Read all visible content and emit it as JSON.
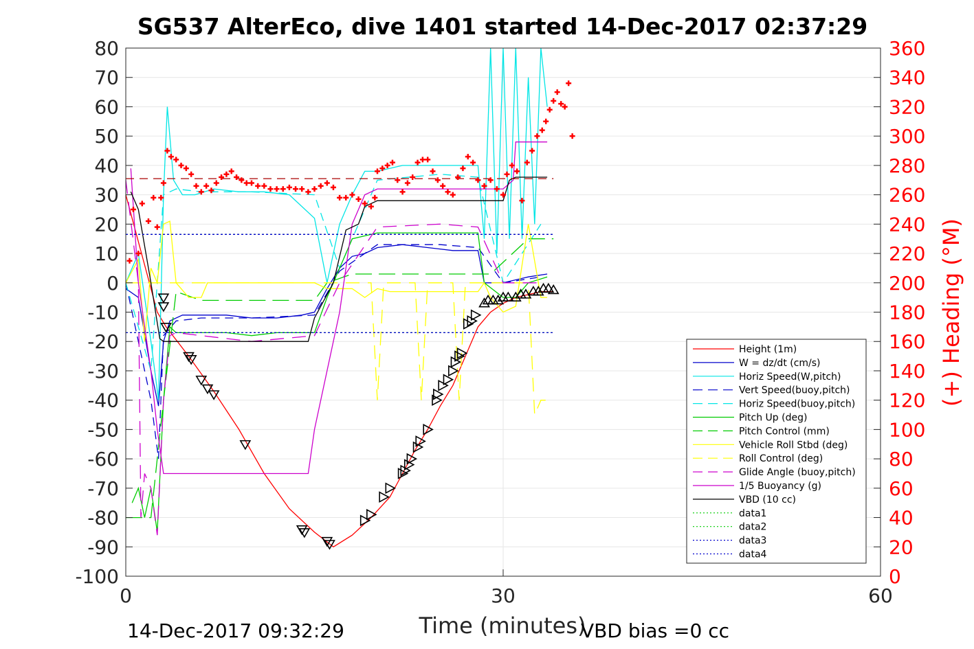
{
  "chart_data": {
    "type": "line",
    "title": "SG537 AlterEco, dive 1401 started 14-Dec-2017 02:37:29",
    "xlabel": "Time (minutes)",
    "ylabel_right": "(+) Heading (°M)",
    "footer_left": "14-Dec-2017 09:32:29",
    "footer_right": "VBD bias =0 cc",
    "xlim": [
      0,
      60
    ],
    "ylim": [
      -100,
      80
    ],
    "ylim_right": [
      0,
      360
    ],
    "xticks": [
      "0",
      "30",
      "60"
    ],
    "yticks": [
      "80",
      "70",
      "60",
      "50",
      "40",
      "30",
      "20",
      "10",
      "0",
      "-10",
      "-20",
      "-30",
      "-40",
      "-50",
      "-60",
      "-70",
      "-80",
      "-90",
      "-100"
    ],
    "yticks_right": [
      "360",
      "340",
      "320",
      "300",
      "280",
      "260",
      "240",
      "220",
      "200",
      "180",
      "160",
      "140",
      "120",
      "100",
      "80",
      "60",
      "40",
      "20",
      "0"
    ],
    "legend_position": "bottom-right",
    "grid": true,
    "legend": [
      {
        "label": "Height (1m)",
        "color": "#ff0000",
        "style": "solid"
      },
      {
        "label": "W = dz/dt (cm/s)",
        "color": "#0000cc",
        "style": "solid"
      },
      {
        "label": "Horiz Speed(W,pitch)",
        "color": "#00e5e5",
        "style": "solid"
      },
      {
        "label": "Vert Speed(buoy,pitch)",
        "color": "#0000cc",
        "style": "dashed"
      },
      {
        "label": "Horiz Speed(buoy,pitch)",
        "color": "#00e5e5",
        "style": "dashed"
      },
      {
        "label": "Pitch Up (deg)",
        "color": "#00cc00",
        "style": "solid"
      },
      {
        "label": "Pitch Control (mm)",
        "color": "#00cc00",
        "style": "dashed"
      },
      {
        "label": "Vehicle Roll Stbd (deg)",
        "color": "#ffff00",
        "style": "solid"
      },
      {
        "label": "Roll Control (deg)",
        "color": "#ffff00",
        "style": "dashed"
      },
      {
        "label": "Glide Angle (buoy,pitch)",
        "color": "#cc00cc",
        "style": "dashed"
      },
      {
        "label": "1/5 Buoyancy (g)",
        "color": "#cc00cc",
        "style": "solid"
      },
      {
        "label": "VBD (10 cc)",
        "color": "#000000",
        "style": "solid"
      },
      {
        "label": "data1",
        "color": "#00cc00",
        "style": "dotted"
      },
      {
        "label": "data2",
        "color": "#00cc00",
        "style": "dotted"
      },
      {
        "label": "data3",
        "color": "#0000cc",
        "style": "dotted"
      },
      {
        "label": "data4",
        "color": "#0000cc",
        "style": "dotted"
      }
    ],
    "series": [
      {
        "name": "Height (1m)",
        "color": "#ff0000",
        "dash": "",
        "x": [
          0,
          2.5,
          3.2,
          5,
          7,
          9,
          11,
          13,
          15,
          16.5,
          18,
          19.5,
          21,
          22,
          23,
          24,
          25,
          26,
          27,
          28,
          29,
          30,
          31,
          32,
          33,
          34
        ],
        "y": [
          30,
          -10,
          -15,
          -25,
          -37,
          -50,
          -65,
          -77,
          -85,
          -90,
          -86,
          -80,
          -73,
          -65,
          -57,
          -50,
          -42,
          -35,
          -25,
          -15,
          -10,
          -7,
          -5,
          -4,
          -3,
          -3
        ]
      },
      {
        "name": "W = dz/dt (cm/s)",
        "color": "#0000cc",
        "dash": "",
        "x": [
          0,
          1,
          2,
          2.6,
          3,
          3.5,
          4.5,
          6,
          8,
          10,
          12,
          14,
          15,
          16,
          17,
          18,
          19,
          20,
          22,
          24,
          26,
          28,
          28.5,
          30,
          32,
          33.5
        ],
        "y": [
          -2,
          -5,
          -30,
          -42,
          -20,
          -13,
          -11,
          -11,
          -11,
          -12,
          -12,
          -11,
          -10,
          -2,
          5,
          9,
          10,
          12,
          13,
          12,
          11,
          11,
          0,
          0,
          2,
          3
        ]
      },
      {
        "name": "Horiz Speed(W,pitch)",
        "color": "#00e5e5",
        "dash": "",
        "x": [
          0,
          1,
          2,
          2.6,
          3,
          3.3,
          3.8,
          4.5,
          5.5,
          7,
          9,
          11,
          13,
          15,
          16,
          17,
          18,
          19,
          20,
          22,
          24,
          26,
          28,
          28.5,
          29,
          29.5,
          30,
          30.5,
          31,
          31.5,
          32,
          32.5,
          33,
          33.5
        ],
        "y": [
          0,
          10,
          -20,
          -40,
          30,
          60,
          35,
          30,
          30,
          32,
          31,
          31,
          30,
          22,
          0,
          20,
          30,
          38,
          38,
          40,
          40,
          40,
          40,
          15,
          80,
          10,
          80,
          15,
          80,
          15,
          70,
          20,
          80,
          60
        ]
      },
      {
        "name": "Vert Speed(buoy,pitch)",
        "color": "#0000cc",
        "dash": "12 8",
        "x": [
          0,
          2,
          2.6,
          3,
          4,
          6,
          10,
          15,
          17,
          20,
          25,
          28,
          30,
          33
        ],
        "y": [
          0,
          -40,
          -60,
          -18,
          -13,
          -12,
          -12,
          -11,
          4,
          13,
          13,
          12,
          0,
          2
        ]
      },
      {
        "name": "Horiz Speed(buoy,pitch)",
        "color": "#00e5e5",
        "dash": "12 8",
        "x": [
          0,
          2,
          3,
          4,
          6,
          10,
          15,
          17,
          20,
          25,
          28,
          30,
          33
        ],
        "y": [
          0,
          -30,
          30,
          32,
          31,
          31,
          30,
          5,
          35,
          37,
          36,
          0,
          20
        ]
      },
      {
        "name": "Pitch Up (deg)",
        "color": "#00cc00",
        "dash": "",
        "x": [
          0.5,
          1,
          1.5,
          2,
          2.5,
          3,
          3.5,
          4,
          6,
          8,
          10,
          12,
          14,
          15,
          16,
          17,
          18,
          20,
          22,
          24,
          26,
          28,
          28.5,
          30,
          31,
          32,
          33.5
        ],
        "y": [
          -75,
          -70,
          -80,
          -70,
          -85,
          -40,
          -15,
          -17,
          -17,
          -17,
          -18,
          -17,
          -17,
          -17,
          -5,
          5,
          15,
          17,
          17,
          17,
          17,
          17,
          0,
          -5,
          -5,
          0,
          2
        ]
      },
      {
        "name": "Pitch Control (mm)",
        "color": "#00cc00",
        "dash": "24 10",
        "x": [
          0,
          2,
          3,
          4,
          6,
          10,
          15,
          16,
          18,
          20,
          25,
          28,
          29,
          32,
          34
        ],
        "y": [
          -80,
          -80,
          -40,
          -3,
          -6,
          -6,
          -6,
          0,
          3,
          3,
          3,
          3,
          3,
          15,
          15
        ]
      },
      {
        "name": "Vehicle Roll Stbd (deg)",
        "color": "#ffff00",
        "dash": "",
        "x": [
          0,
          1,
          1.5,
          2,
          2.5,
          3,
          3.5,
          4,
          5,
          6,
          6.5,
          7,
          9,
          11,
          13,
          14,
          15,
          16,
          17,
          18,
          19,
          20,
          21,
          22,
          23,
          24,
          25,
          26,
          27,
          28,
          28.5,
          29,
          30,
          31,
          32,
          33,
          33.5
        ],
        "y": [
          0,
          8,
          -20,
          5,
          0,
          20,
          21,
          0,
          -5,
          -5,
          0,
          0,
          0,
          0,
          0,
          0,
          0,
          -2,
          -2,
          -2,
          -5,
          -2,
          -3,
          -3,
          -3,
          -3,
          -3,
          -3,
          -3,
          -3,
          0,
          -5,
          -10,
          -8,
          20,
          -5,
          -5
        ]
      },
      {
        "name": "Roll Control (deg)",
        "color": "#ffff00",
        "dash": "20 12",
        "x": [
          0,
          5,
          10,
          15,
          18,
          19.5,
          20,
          20.5,
          22,
          23,
          23.5,
          24,
          25,
          26,
          26.5,
          27,
          28,
          30,
          32,
          32.5,
          33,
          33.5
        ],
        "y": [
          0,
          0,
          0,
          0,
          0,
          0,
          -40,
          0,
          0,
          0,
          -40,
          0,
          0,
          0,
          -40,
          0,
          0,
          0,
          0,
          -45,
          -40,
          -40
        ]
      },
      {
        "name": "Glide Angle (buoy,pitch)",
        "color": "#cc00cc",
        "dash": "20 12",
        "x": [
          0,
          1,
          1.2,
          1.5,
          2,
          2.5,
          3,
          3.5,
          4,
          6,
          10,
          15,
          17,
          20,
          25,
          28,
          30,
          33
        ],
        "y": [
          35,
          0,
          -80,
          -65,
          -70,
          -86,
          -40,
          -18,
          -17,
          -18,
          -20,
          -18,
          0,
          19,
          20,
          19,
          0,
          0
        ]
      },
      {
        "name": "1/5 Buoyancy (g)",
        "color": "#cc00cc",
        "dash": "",
        "x": [
          0.4,
          1,
          2,
          2.5,
          3,
          5,
          10,
          14.5,
          15,
          17,
          18,
          19,
          20,
          25,
          28,
          28.5,
          30,
          30.8,
          31,
          32,
          33.5
        ],
        "y": [
          39,
          0,
          -30,
          -50,
          -65,
          -65,
          -65,
          -65,
          -50,
          -10,
          20,
          30,
          32,
          32,
          32,
          32,
          32,
          35,
          48,
          48,
          48
        ]
      },
      {
        "name": "VBD (10 cc)",
        "color": "#000000",
        "dash": "",
        "x": [
          0.4,
          1,
          2,
          2.7,
          3,
          5,
          10,
          14.5,
          15,
          16.5,
          17.5,
          18.5,
          19,
          20,
          22,
          25,
          28.5,
          30,
          30.5,
          31,
          33.5
        ],
        "y": [
          31,
          25,
          0,
          -19,
          -20,
          -20,
          -20,
          -20,
          -12,
          0,
          18,
          20,
          26,
          28,
          28,
          28,
          28,
          28,
          35,
          36,
          36
        ]
      },
      {
        "name": "data1",
        "color": "#00cc00",
        "dash": "3 3",
        "x": [
          0,
          34
        ],
        "y": [
          16.5,
          16.5
        ]
      },
      {
        "name": "data2",
        "color": "#00cc00",
        "dash": "3 3",
        "x": [
          0,
          34
        ],
        "y": [
          -17,
          -17
        ]
      },
      {
        "name": "data3",
        "color": "#0000cc",
        "dash": "3 3",
        "x": [
          0,
          34
        ],
        "y": [
          16.5,
          16.5
        ]
      },
      {
        "name": "data4",
        "color": "#0000cc",
        "dash": "3 3",
        "x": [
          0,
          34
        ],
        "y": [
          -17,
          -17
        ]
      },
      {
        "name": "heading_target",
        "color": "#aa0000",
        "dash": "12 8",
        "x": [
          0,
          34
        ],
        "y": [
          35.5,
          35.5
        ]
      }
    ],
    "heading_points": [
      [
        0.3,
        215
      ],
      [
        0.6,
        250
      ],
      [
        1,
        220
      ],
      [
        1.3,
        254
      ],
      [
        1.8,
        242
      ],
      [
        2.2,
        258
      ],
      [
        2.5,
        238
      ],
      [
        2.8,
        258
      ],
      [
        3.0,
        268
      ],
      [
        3.3,
        290
      ],
      [
        3.6,
        286
      ],
      [
        4.0,
        284
      ],
      [
        4.4,
        280
      ],
      [
        4.8,
        278
      ],
      [
        5.2,
        274
      ],
      [
        5.6,
        266
      ],
      [
        6.0,
        262
      ],
      [
        6.4,
        266
      ],
      [
        6.8,
        263
      ],
      [
        7.2,
        268
      ],
      [
        7.6,
        272
      ],
      [
        8.0,
        274
      ],
      [
        8.4,
        276
      ],
      [
        8.8,
        272
      ],
      [
        9.2,
        270
      ],
      [
        9.6,
        268
      ],
      [
        10,
        268
      ],
      [
        10.5,
        266
      ],
      [
        11,
        266
      ],
      [
        11.5,
        264
      ],
      [
        12,
        264
      ],
      [
        12.5,
        264
      ],
      [
        13,
        265
      ],
      [
        13.5,
        264
      ],
      [
        14,
        264
      ],
      [
        14.5,
        262
      ],
      [
        15,
        264
      ],
      [
        15.5,
        266
      ],
      [
        16,
        268
      ],
      [
        16.5,
        265
      ],
      [
        17,
        258
      ],
      [
        17.5,
        258
      ],
      [
        18,
        260
      ],
      [
        18.5,
        257
      ],
      [
        19,
        254
      ],
      [
        19.5,
        252
      ],
      [
        19.8,
        258
      ],
      [
        20,
        276
      ],
      [
        20.4,
        278
      ],
      [
        20.8,
        280
      ],
      [
        21.2,
        282
      ],
      [
        21.6,
        270
      ],
      [
        22,
        262
      ],
      [
        22.4,
        268
      ],
      [
        22.8,
        272
      ],
      [
        23.2,
        282
      ],
      [
        23.6,
        284
      ],
      [
        24,
        284
      ],
      [
        24.4,
        276
      ],
      [
        24.8,
        270
      ],
      [
        25.2,
        266
      ],
      [
        25.6,
        262
      ],
      [
        26,
        260
      ],
      [
        26.4,
        272
      ],
      [
        26.8,
        278
      ],
      [
        27.2,
        286
      ],
      [
        27.6,
        282
      ],
      [
        28,
        270
      ],
      [
        28.5,
        266
      ],
      [
        29,
        270
      ],
      [
        29.5,
        264
      ],
      [
        30,
        260
      ],
      [
        30.3,
        274
      ],
      [
        30.7,
        280
      ],
      [
        31.1,
        276
      ],
      [
        31.5,
        256
      ],
      [
        31.9,
        282
      ],
      [
        32.3,
        290
      ],
      [
        32.7,
        300
      ],
      [
        33.1,
        304
      ],
      [
        33.4,
        310
      ],
      [
        33.7,
        318
      ],
      [
        34.0,
        324
      ],
      [
        34.3,
        330
      ],
      [
        34.6,
        322
      ],
      [
        34.9,
        320
      ],
      [
        35.2,
        336
      ],
      [
        35.5,
        300
      ]
    ],
    "marker_points": [
      [
        3.0,
        -5
      ],
      [
        3.0,
        -8
      ],
      [
        3.2,
        -15
      ],
      [
        5.0,
        -25
      ],
      [
        5.2,
        -26
      ],
      [
        6.0,
        -33
      ],
      [
        6.5,
        -36
      ],
      [
        7.0,
        -38
      ],
      [
        9.5,
        -55
      ],
      [
        14.0,
        -84
      ],
      [
        14.2,
        -85
      ],
      [
        16.0,
        -88
      ],
      [
        16.2,
        -89
      ],
      [
        19.0,
        -81
      ],
      [
        19.5,
        -79
      ],
      [
        20.5,
        -73
      ],
      [
        21.0,
        -70
      ],
      [
        22.0,
        -65
      ],
      [
        22.2,
        -64
      ],
      [
        22.5,
        -62
      ],
      [
        22.7,
        -60
      ],
      [
        23.2,
        -56
      ],
      [
        23.4,
        -54
      ],
      [
        24.0,
        -50
      ],
      [
        24.7,
        -40
      ],
      [
        24.8,
        -38
      ],
      [
        25.2,
        -35
      ],
      [
        25.6,
        -33
      ],
      [
        26.0,
        -30
      ],
      [
        26.2,
        -27
      ],
      [
        26.5,
        -25
      ],
      [
        26.7,
        -24
      ],
      [
        27.2,
        -14
      ],
      [
        27.5,
        -13
      ],
      [
        27.8,
        -11
      ],
      [
        28.5,
        -7
      ],
      [
        28.8,
        -6
      ],
      [
        29.2,
        -6
      ],
      [
        29.6,
        -6
      ],
      [
        30.0,
        -5
      ],
      [
        30.4,
        -5
      ],
      [
        31.0,
        -5
      ],
      [
        31.4,
        -4
      ],
      [
        31.8,
        -4
      ],
      [
        32.4,
        -3
      ],
      [
        32.8,
        -3
      ],
      [
        33.2,
        -2
      ],
      [
        33.6,
        -2
      ],
      [
        34.0,
        -2.5
      ]
    ]
  }
}
